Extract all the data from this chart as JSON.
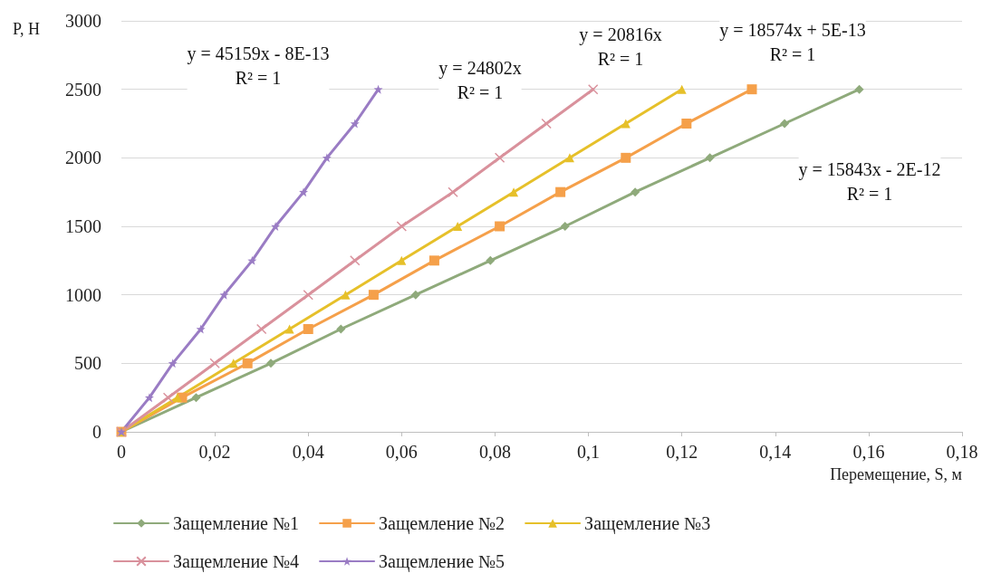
{
  "chart_data": {
    "type": "line",
    "xlabel": "Перемещение, S, м",
    "ylabel": "P, H",
    "xlim": [
      0,
      0.18
    ],
    "xticks": [
      0,
      {
        "value": 0.02,
        "label": "0,02"
      },
      {
        "value": 0.04,
        "label": "0,04"
      },
      {
        "value": 0.06,
        "label": "0,06"
      },
      {
        "value": 0.08,
        "label": "0,08"
      },
      {
        "value": 0.1,
        "label": "0,1"
      },
      {
        "value": 0.12,
        "label": "0,12"
      },
      {
        "value": 0.14,
        "label": "0,14"
      },
      {
        "value": 0.16,
        "label": "0,16"
      },
      {
        "value": 0.18,
        "label": "0,18"
      }
    ],
    "ylim": [
      0,
      3000
    ],
    "yticks": [
      0,
      500,
      1000,
      1500,
      2000,
      2500,
      3000
    ],
    "grid": "y",
    "legend": "bottom",
    "line_style": "solid",
    "series": [
      {
        "name": "Защемление №1",
        "color": "#8faa7b",
        "marker": "diamond",
        "x": [
          0,
          0.016,
          0.032,
          0.047,
          0.063,
          0.079,
          0.095,
          0.11,
          0.126,
          0.142,
          0.158
        ],
        "values": [
          0,
          250,
          500,
          750,
          1000,
          1250,
          1500,
          1750,
          2000,
          2250,
          2500
        ]
      },
      {
        "name": "Защемление №2",
        "color": "#f5a04a",
        "marker": "square",
        "x": [
          0,
          0.013,
          0.027,
          0.04,
          0.054,
          0.067,
          0.081,
          0.094,
          0.108,
          0.121,
          0.135
        ],
        "values": [
          0,
          250,
          500,
          750,
          1000,
          1250,
          1500,
          1750,
          2000,
          2250,
          2500
        ]
      },
      {
        "name": "Защемление №3",
        "color": "#e6c02a",
        "marker": "triangle",
        "x": [
          0,
          0.012,
          0.024,
          0.036,
          0.048,
          0.06,
          0.072,
          0.084,
          0.096,
          0.108,
          0.12
        ],
        "values": [
          0,
          250,
          500,
          750,
          1000,
          1250,
          1500,
          1750,
          2000,
          2250,
          2500
        ]
      },
      {
        "name": "Защемление №4",
        "color": "#d9919c",
        "marker": "cross",
        "x": [
          0,
          0.01,
          0.02,
          0.03,
          0.04,
          0.05,
          0.06,
          0.071,
          0.081,
          0.091,
          0.101
        ],
        "values": [
          0,
          250,
          500,
          750,
          1000,
          1250,
          1500,
          1750,
          2000,
          2250,
          2500
        ]
      },
      {
        "name": "Защемление №5",
        "color": "#9a7cc4",
        "marker": "star",
        "x": [
          0,
          0.006,
          0.011,
          0.017,
          0.022,
          0.028,
          0.033,
          0.039,
          0.044,
          0.05,
          0.055
        ],
        "values": [
          0,
          250,
          500,
          750,
          1000,
          1250,
          1500,
          1750,
          2000,
          2250,
          2500
        ]
      }
    ],
    "annotations": [
      "y = 45159x - 8E-13\nR² = 1",
      "y = 24802x\nR² = 1",
      "y = 20816x\nR² = 1",
      "y = 18574x + 5E-13\nR² = 1",
      "y = 15843x - 2E-12\nR² = 1"
    ]
  }
}
